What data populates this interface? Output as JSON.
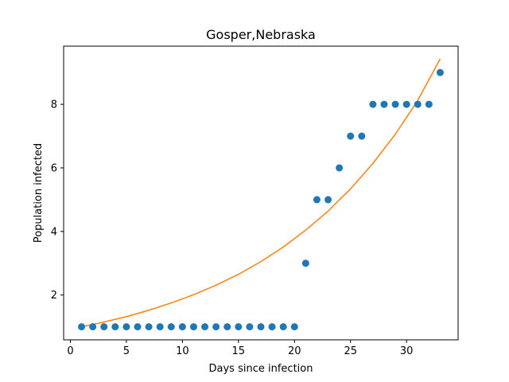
{
  "chart_data": {
    "type": "scatter",
    "title": "Gosper,Nebraska",
    "xlabel": "Days since infection",
    "ylabel": "Population infected",
    "xlim": [
      -0.6,
      34.6
    ],
    "ylim": [
      0.59,
      9.83
    ],
    "xticks": [
      0,
      5,
      10,
      15,
      20,
      25,
      30
    ],
    "yticks": [
      2,
      4,
      6,
      8
    ],
    "grid": false,
    "colors": {
      "points": "#1f77b4",
      "fit": "#ff7f0e"
    },
    "series": [
      {
        "type": "scatter",
        "x": [
          1,
          2,
          3,
          4,
          5,
          6,
          7,
          8,
          9,
          10,
          11,
          12,
          13,
          14,
          15,
          16,
          17,
          18,
          19,
          20,
          21,
          22,
          23,
          24,
          25,
          26,
          27,
          28,
          29,
          30,
          31,
          32,
          33
        ],
        "y": [
          1,
          1,
          1,
          1,
          1,
          1,
          1,
          1,
          1,
          1,
          1,
          1,
          1,
          1,
          1,
          1,
          1,
          1,
          1,
          1,
          3,
          5,
          5,
          6,
          7,
          7,
          8,
          8,
          8,
          8,
          8,
          8,
          9
        ]
      },
      {
        "type": "line",
        "x": [
          1,
          3,
          5,
          7,
          9,
          11,
          13,
          15,
          17,
          19,
          21,
          23,
          25,
          27,
          29,
          31,
          33
        ],
        "y": [
          1.0,
          1.15,
          1.32,
          1.52,
          1.75,
          2.01,
          2.31,
          2.65,
          3.05,
          3.51,
          4.04,
          4.64,
          5.34,
          6.14,
          7.06,
          8.12,
          9.43
        ]
      }
    ]
  }
}
